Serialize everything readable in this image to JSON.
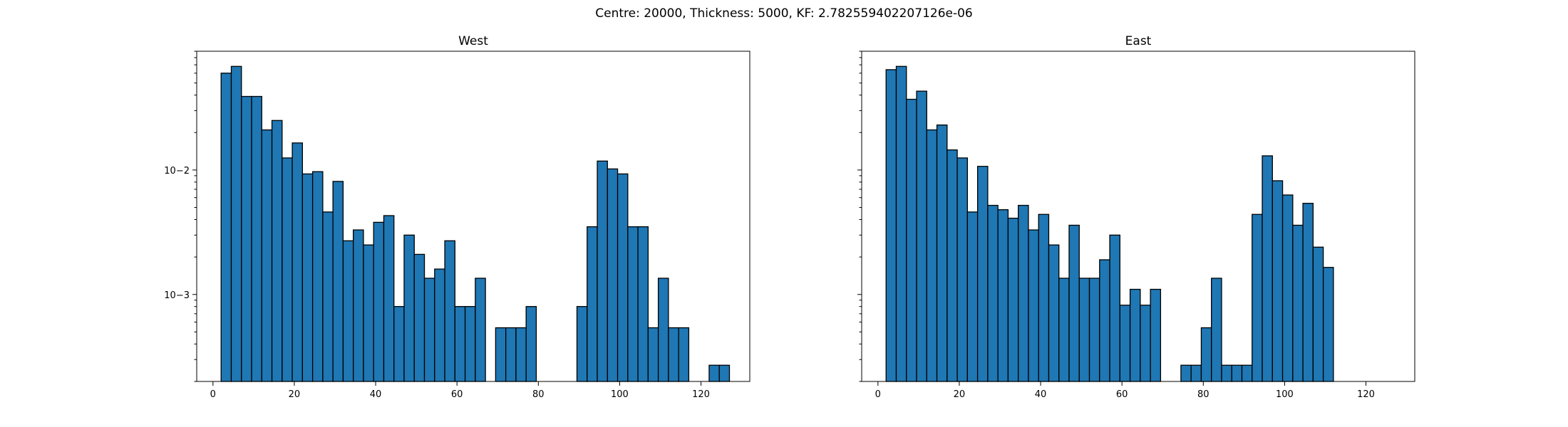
{
  "figure_title": "Centre: 20000, Thickness: 5000, KF: 2.782559402207126e-06",
  "chart_data": [
    {
      "type": "bar",
      "title": "West",
      "xlabel": "",
      "ylabel": "",
      "yscale": "log",
      "xlim": [
        -4,
        132
      ],
      "ylim": [
        0.0002,
        0.09
      ],
      "xticks": [
        0,
        20,
        40,
        60,
        80,
        100,
        120
      ],
      "yticks": [
        {
          "value": 0.001,
          "label": "10−3"
        },
        {
          "value": 0.01,
          "label": "10−2"
        }
      ],
      "bin_width": 2.5,
      "bin_start": 2,
      "values": [
        0.06,
        0.068,
        0.039,
        0.039,
        0.021,
        0.025,
        0.0125,
        0.0165,
        0.0093,
        0.0097,
        0.0046,
        0.0081,
        0.0027,
        0.0033,
        0.0025,
        0.0038,
        0.0043,
        0.0008,
        0.003,
        0.0021,
        0.00135,
        0.0016,
        0.0027,
        0.0008,
        0.0008,
        0.00135,
        null,
        0.00054,
        0.00054,
        0.00054,
        0.0008,
        null,
        null,
        null,
        null,
        0.0008,
        0.0035,
        0.0118,
        0.0102,
        0.0093,
        0.0035,
        0.0035,
        0.00054,
        0.00135,
        0.00054,
        0.00054,
        null,
        null,
        0.00027,
        0.00027
      ],
      "grid": false
    },
    {
      "type": "bar",
      "title": "East",
      "xlabel": "",
      "ylabel": "",
      "yscale": "log",
      "xlim": [
        -4,
        132
      ],
      "ylim": [
        0.0002,
        0.09
      ],
      "xticks": [
        0,
        20,
        40,
        60,
        80,
        100,
        120
      ],
      "yticks": [
        {
          "value": 0.001,
          "label": ""
        },
        {
          "value": 0.01,
          "label": ""
        }
      ],
      "bin_width": 2.5,
      "bin_start": 2,
      "values": [
        0.064,
        0.068,
        0.037,
        0.043,
        0.021,
        0.023,
        0.0145,
        0.0125,
        0.0046,
        0.0107,
        0.0052,
        0.0048,
        0.0041,
        0.0052,
        0.0033,
        0.0044,
        0.0025,
        0.00135,
        0.0036,
        0.00135,
        0.00135,
        0.0019,
        0.003,
        0.00082,
        0.0011,
        0.00082,
        0.0011,
        null,
        null,
        0.00027,
        0.00027,
        0.00054,
        0.00135,
        0.00027,
        0.00027,
        0.00027,
        0.0044,
        0.013,
        0.0082,
        0.0063,
        0.0036,
        0.0054,
        0.0024,
        0.00165
      ],
      "grid": false
    }
  ]
}
